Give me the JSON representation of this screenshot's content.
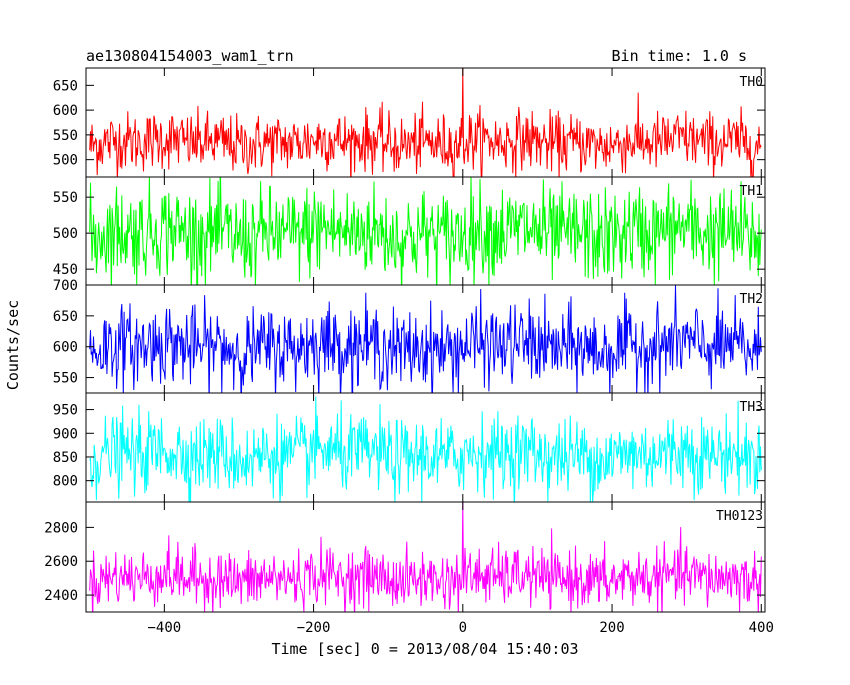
{
  "chart_data": {
    "type": "line",
    "title": "ae130804154003_wam1_trn",
    "bin_time": "Bin time: 1.0 s",
    "xlabel": "Time [sec] 0 = 2013/08/04 15:40:03",
    "ylabel": "Counts/sec",
    "xlim": [
      -505,
      405
    ],
    "x_ticks": [
      -400,
      -200,
      0,
      200,
      400
    ],
    "x_tick_labels": [
      "−400",
      "−200",
      "0",
      "200",
      "400"
    ],
    "x_range": [
      -500,
      400
    ],
    "x_step": 1.0,
    "grid": false,
    "panels": [
      {
        "name": "TH0",
        "color": "#ff0000",
        "ylim": [
          465,
          685
        ],
        "yticks": [
          500,
          550,
          600,
          650
        ],
        "yticklabels": [
          "500",
          "550",
          "600",
          "650"
        ],
        "mean": 535,
        "noise": 30,
        "spike": {
          "x": 0,
          "y": 685
        }
      },
      {
        "name": "TH1",
        "color": "#00ff00",
        "ylim": [
          428,
          578
        ],
        "yticks": [
          450,
          500,
          550
        ],
        "yticklabels": [
          "450",
          "500",
          "550"
        ],
        "mean": 500,
        "noise": 32,
        "spike": null
      },
      {
        "name": "TH2",
        "color": "#0000ff",
        "ylim": [
          525,
          700
        ],
        "yticks": [
          550,
          600,
          650,
          700
        ],
        "yticklabels": [
          "550",
          "600",
          "650",
          "700"
        ],
        "mean": 600,
        "noise": 32,
        "spike": null
      },
      {
        "name": "TH3",
        "color": "#00ffff",
        "ylim": [
          755,
          985
        ],
        "yticks": [
          800,
          850,
          900,
          950
        ],
        "yticklabels": [
          "800",
          "850",
          "900",
          "950"
        ],
        "mean": 855,
        "noise": 40,
        "spike": null
      },
      {
        "name": "TH0123",
        "color": "#ff00ff",
        "ylim": [
          2300,
          2950
        ],
        "yticks": [
          2400,
          2600,
          2800
        ],
        "yticklabels": [
          "2400",
          "2600",
          "2800"
        ],
        "mean": 2500,
        "noise": 85,
        "spike": {
          "x": 0,
          "y": 2950
        }
      }
    ]
  }
}
